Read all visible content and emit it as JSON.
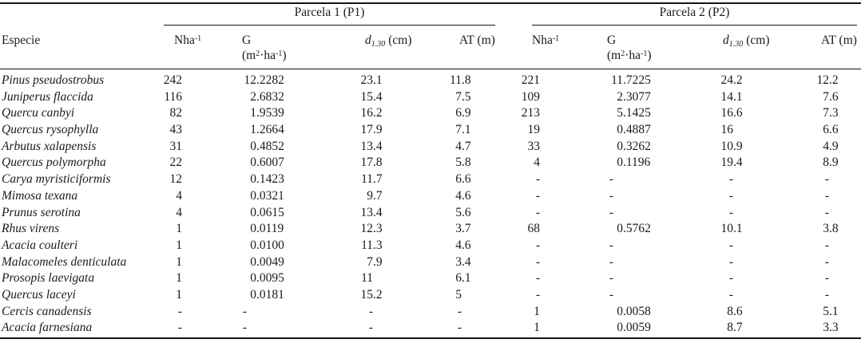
{
  "table": {
    "row_header": "Especie",
    "groups": [
      {
        "label": "Parcela 1 (P1)"
      },
      {
        "label": "Parcela 2 (P2)"
      }
    ],
    "headers": {
      "nha": {
        "text": "Nha",
        "sup": "-1"
      },
      "g": {
        "symbol": "G",
        "unit_open": "(m",
        "unit_sup1": "2",
        "unit_mid": "·ha",
        "unit_sup2": "-1",
        "unit_close": ")"
      },
      "d": {
        "symbol": "d",
        "sub": "1.30",
        "unit": "(cm)"
      },
      "at": {
        "text": "AT (m)"
      }
    },
    "column_keys": [
      "n1",
      "g1",
      "d1",
      "at1",
      "n2",
      "g2",
      "d2",
      "at2"
    ],
    "missing_value": "-",
    "rows": [
      {
        "especie": "Pinus pseudostrobus",
        "values": [
          "242",
          "12.2282",
          "23.1",
          "11.8",
          "221",
          "11.7225",
          "24.2",
          "12.2"
        ]
      },
      {
        "especie": "Juniperus flaccida",
        "values": [
          "116",
          "2.6832",
          "15.4",
          "7.5",
          "109",
          "2.3077",
          "14.1",
          "7.6"
        ]
      },
      {
        "especie": "Quercu canbyi",
        "values": [
          "82",
          "1.9539",
          "16.2",
          "6.9",
          "213",
          "5.1425",
          "16.6",
          "7.3"
        ]
      },
      {
        "especie": "Quercus rysophylla",
        "values": [
          "43",
          "1.2664",
          "17.9",
          "7.1",
          "19",
          "0.4887",
          "16",
          "6.6"
        ]
      },
      {
        "especie": "Arbutus xalapensis",
        "values": [
          "31",
          "0.4852",
          "13.4",
          "4.7",
          "33",
          "0.3262",
          "10.9",
          "4.9"
        ]
      },
      {
        "especie": "Quercus polymorpha",
        "values": [
          "22",
          "0.6007",
          "17.8",
          "5.8",
          "4",
          "0.1196",
          "19.4",
          "8.9"
        ]
      },
      {
        "especie": "Carya myristiciformis",
        "values": [
          "12",
          "0.1423",
          "11.7",
          "6.6",
          "-",
          "-",
          "-",
          "-"
        ]
      },
      {
        "especie": "Mimosa texana",
        "values": [
          "4",
          "0.0321",
          "9.7",
          "4.6",
          "-",
          "-",
          "-",
          "-"
        ]
      },
      {
        "especie": "Prunus serotina",
        "values": [
          "4",
          "0.0615",
          "13.4",
          "5.6",
          "-",
          "-",
          "-",
          "-"
        ]
      },
      {
        "especie": "Rhus virens",
        "values": [
          "1",
          "0.0119",
          "12.3",
          "3.7",
          "68",
          "0.5762",
          "10.1",
          "3.8"
        ]
      },
      {
        "especie": "Acacia coulteri",
        "values": [
          "1",
          "0.0100",
          "11.3",
          "4.6",
          "-",
          "-",
          "-",
          "-"
        ]
      },
      {
        "especie": "Malacomeles denticulata",
        "values": [
          "1",
          "0.0049",
          "7.9",
          "3.4",
          "-",
          "-",
          "-",
          "-"
        ]
      },
      {
        "especie": "Prosopis laevigata",
        "values": [
          "1",
          "0.0095",
          "11",
          "6.1",
          "-",
          "-",
          "-",
          "-"
        ]
      },
      {
        "especie": "Quercus laceyi",
        "values": [
          "1",
          "0.0181",
          "15.2",
          "5",
          "-",
          "-",
          "-",
          "-"
        ]
      },
      {
        "especie": "Cercis canadensis",
        "values": [
          "-",
          "-",
          "-",
          "-",
          "1",
          "0.0058",
          "8.6",
          "5.1"
        ]
      },
      {
        "especie": "Acacia farnesiana",
        "values": [
          "-",
          "-",
          "-",
          "-",
          "1",
          "0.0059",
          "8.7",
          "3.3"
        ]
      }
    ],
    "colors": {
      "text": "#1b1b1b",
      "rule": "#141414",
      "background": "#ffffff"
    }
  }
}
